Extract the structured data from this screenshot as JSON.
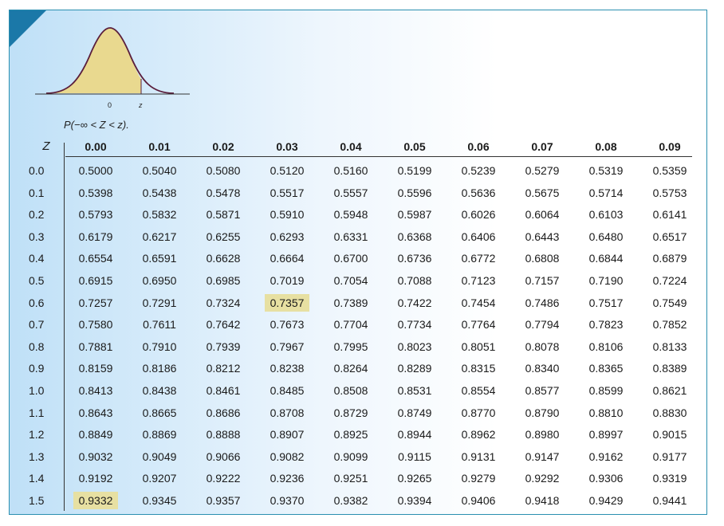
{
  "figure": {
    "zero_label": "0",
    "z_label": "z",
    "probability_label": "P(−∞ < Z < z)."
  },
  "table": {
    "z_header": "Z",
    "columns": [
      "0.00",
      "0.01",
      "0.02",
      "0.03",
      "0.04",
      "0.05",
      "0.06",
      "0.07",
      "0.08",
      "0.09"
    ],
    "rows": [
      {
        "z": "0.0",
        "v": [
          "0.5000",
          "0.5040",
          "0.5080",
          "0.5120",
          "0.5160",
          "0.5199",
          "0.5239",
          "0.5279",
          "0.5319",
          "0.5359"
        ]
      },
      {
        "z": "0.1",
        "v": [
          "0.5398",
          "0.5438",
          "0.5478",
          "0.5517",
          "0.5557",
          "0.5596",
          "0.5636",
          "0.5675",
          "0.5714",
          "0.5753"
        ]
      },
      {
        "z": "0.2",
        "v": [
          "0.5793",
          "0.5832",
          "0.5871",
          "0.5910",
          "0.5948",
          "0.5987",
          "0.6026",
          "0.6064",
          "0.6103",
          "0.6141"
        ]
      },
      {
        "z": "0.3",
        "v": [
          "0.6179",
          "0.6217",
          "0.6255",
          "0.6293",
          "0.6331",
          "0.6368",
          "0.6406",
          "0.6443",
          "0.6480",
          "0.6517"
        ]
      },
      {
        "z": "0.4",
        "v": [
          "0.6554",
          "0.6591",
          "0.6628",
          "0.6664",
          "0.6700",
          "0.6736",
          "0.6772",
          "0.6808",
          "0.6844",
          "0.6879"
        ]
      },
      {
        "z": "0.5",
        "v": [
          "0.6915",
          "0.6950",
          "0.6985",
          "0.7019",
          "0.7054",
          "0.7088",
          "0.7123",
          "0.7157",
          "0.7190",
          "0.7224"
        ]
      },
      {
        "z": "0.6",
        "v": [
          "0.7257",
          "0.7291",
          "0.7324",
          "0.7357",
          "0.7389",
          "0.7422",
          "0.7454",
          "0.7486",
          "0.7517",
          "0.7549"
        ]
      },
      {
        "z": "0.7",
        "v": [
          "0.7580",
          "0.7611",
          "0.7642",
          "0.7673",
          "0.7704",
          "0.7734",
          "0.7764",
          "0.7794",
          "0.7823",
          "0.7852"
        ]
      },
      {
        "z": "0.8",
        "v": [
          "0.7881",
          "0.7910",
          "0.7939",
          "0.7967",
          "0.7995",
          "0.8023",
          "0.8051",
          "0.8078",
          "0.8106",
          "0.8133"
        ]
      },
      {
        "z": "0.9",
        "v": [
          "0.8159",
          "0.8186",
          "0.8212",
          "0.8238",
          "0.8264",
          "0.8289",
          "0.8315",
          "0.8340",
          "0.8365",
          "0.8389"
        ]
      },
      {
        "z": "1.0",
        "v": [
          "0.8413",
          "0.8438",
          "0.8461",
          "0.8485",
          "0.8508",
          "0.8531",
          "0.8554",
          "0.8577",
          "0.8599",
          "0.8621"
        ]
      },
      {
        "z": "1.1",
        "v": [
          "0.8643",
          "0.8665",
          "0.8686",
          "0.8708",
          "0.8729",
          "0.8749",
          "0.8770",
          "0.8790",
          "0.8810",
          "0.8830"
        ]
      },
      {
        "z": "1.2",
        "v": [
          "0.8849",
          "0.8869",
          "0.8888",
          "0.8907",
          "0.8925",
          "0.8944",
          "0.8962",
          "0.8980",
          "0.8997",
          "0.9015"
        ]
      },
      {
        "z": "1.3",
        "v": [
          "0.9032",
          "0.9049",
          "0.9066",
          "0.9082",
          "0.9099",
          "0.9115",
          "0.9131",
          "0.9147",
          "0.9162",
          "0.9177"
        ]
      },
      {
        "z": "1.4",
        "v": [
          "0.9192",
          "0.9207",
          "0.9222",
          "0.9236",
          "0.9251",
          "0.9265",
          "0.9279",
          "0.9292",
          "0.9306",
          "0.9319"
        ]
      },
      {
        "z": "1.5",
        "v": [
          "0.9332",
          "0.9345",
          "0.9357",
          "0.9370",
          "0.9382",
          "0.9394",
          "0.9406",
          "0.9418",
          "0.9429",
          "0.9441"
        ]
      }
    ],
    "highlighted_cells": [
      {
        "row": 6,
        "col": 3
      },
      {
        "row": 15,
        "col": 0
      }
    ],
    "colors": {
      "highlight": "#e7e0a2",
      "curve_fill": "#e9d98f",
      "curve_stroke": "#5a1e3c",
      "accent": "#1b78a8"
    }
  }
}
